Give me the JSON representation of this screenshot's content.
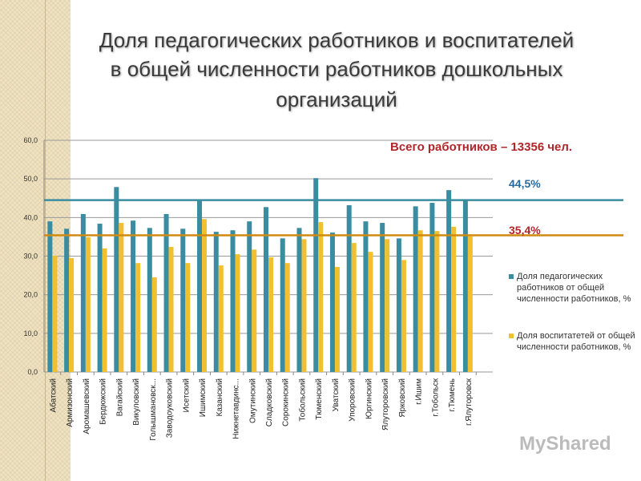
{
  "title_lines": [
    "Доля педагогических работников и воспитателей",
    "в общей численности работников дошкольных",
    "организаций"
  ],
  "annotation_total": "Всего работников – 13356 чел.",
  "watermark": "MyShared",
  "chart_data": {
    "type": "bar",
    "ylim": [
      0,
      60
    ],
    "yticks": [
      "0,0",
      "10,0",
      "20,0",
      "30,0",
      "40,0",
      "50,0",
      "60,0"
    ],
    "grid": true,
    "legend_placement": "right",
    "categories": [
      "Абатский",
      "Армизонский",
      "Аромашевский",
      "Бердюжский",
      "Вагайский",
      "Викуловский",
      "Голышмановск...",
      "Заводоуковский",
      "Исетский",
      "Ишимский",
      "Казанский",
      "Нижнетавдинс...",
      "Омутинский",
      "Сладковский",
      "Сорокинский",
      "Тобольский",
      "Тюменский",
      "Уватский",
      "Упоровский",
      "Юргинский",
      "Ялуторовский",
      "Ярковский",
      "г.Ишим",
      "г.Тобольск",
      "г.Тюмень",
      "г.Ялуторовск"
    ],
    "series": [
      {
        "name": "Доля педагогических работников от общей численности работников, %",
        "color": "#3a8ca0",
        "values": [
          39.0,
          37.1,
          40.9,
          38.4,
          47.9,
          39.2,
          37.3,
          40.9,
          37.1,
          44.4,
          36.3,
          36.7,
          39.0,
          42.7,
          34.6,
          37.3,
          50.2,
          36.1,
          43.2,
          39.0,
          38.6,
          34.6,
          42.9,
          43.8,
          47.1,
          44.5
        ]
      },
      {
        "name": "Доля воспитатетей от общей численности работников, %",
        "color": "#f0c030",
        "values": [
          30.1,
          29.5,
          34.9,
          32.0,
          38.6,
          28.2,
          24.5,
          32.4,
          28.2,
          39.6,
          27.6,
          30.5,
          31.7,
          29.7,
          28.2,
          34.4,
          38.8,
          27.2,
          33.4,
          31.1,
          34.4,
          29.0,
          36.7,
          36.5,
          37.6,
          35.1
        ]
      }
    ],
    "reference_lines": [
      {
        "value": 44.5,
        "label": "44,5%",
        "color": "#3a8ca0"
      },
      {
        "value": 35.4,
        "label": "35,4%",
        "color": "#d08a10"
      }
    ]
  }
}
